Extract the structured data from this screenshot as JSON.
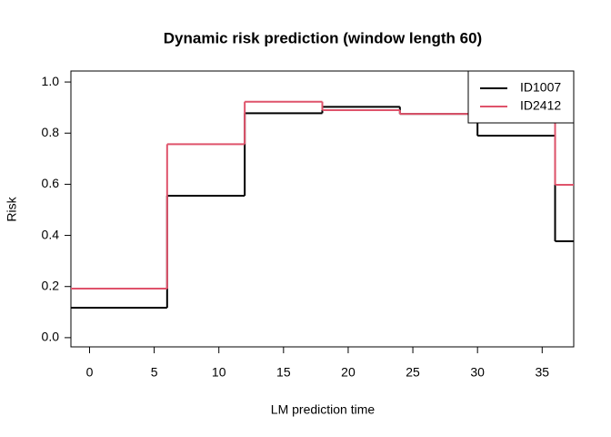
{
  "chart_data": {
    "type": "step",
    "title": "Dynamic risk prediction (window length 60)",
    "xlabel": "LM prediction time",
    "ylabel": "Risk",
    "x": [
      0,
      6,
      12,
      18,
      24,
      30,
      36
    ],
    "series": [
      {
        "name": "ID1007",
        "color": "#000000",
        "values": [
          0.117,
          0.555,
          0.878,
          0.903,
          0.875,
          0.79,
          0.377
        ]
      },
      {
        "name": "ID2412",
        "color": "#DF536B",
        "values": [
          0.192,
          0.757,
          0.923,
          0.89,
          0.875,
          0.875,
          0.598
        ]
      }
    ],
    "xlim": [
      -1.44,
      37.44
    ],
    "xticks": [
      0,
      5,
      10,
      15,
      20,
      25,
      30,
      35
    ],
    "ylim": [
      -0.036,
      1.043
    ],
    "yticks": [
      {
        "value": 0,
        "label": "0.0"
      },
      0.2,
      0.4,
      0.6,
      0.8,
      {
        "value": 1,
        "label": "1.0"
      }
    ],
    "legend": "top-right"
  }
}
